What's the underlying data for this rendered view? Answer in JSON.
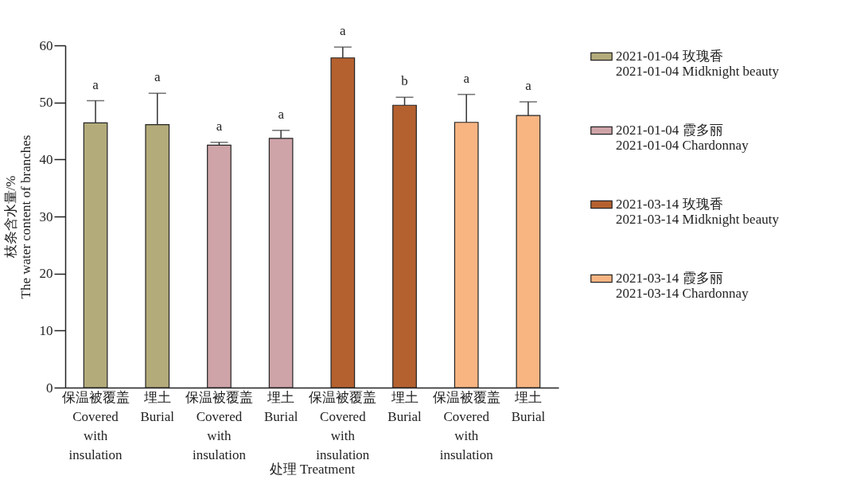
{
  "chart_data": {
    "type": "bar",
    "xlabel": "处理 Treatment",
    "ylabel": "枝条含水量/%\nThe water content of branches",
    "categories": [
      "保温被覆盖\nCovered\nwith\ninsulation",
      "埋土\nBurial",
      "保温被覆盖\nCovered\nwith\ninsulation",
      "埋土\nBurial",
      "保温被覆盖\nCovered\nwith\ninsulation",
      "埋土\nBurial",
      "保温被覆盖\nCovered\nwith\ninsulation",
      "埋土\nBurial"
    ],
    "series": [
      {
        "name": "2021-01-04 玫瑰香\n2021-01-04 Midknight beauty",
        "color": "#b3ab7a",
        "values": [
          46.4,
          46.1,
          null,
          null,
          null,
          null,
          null,
          null
        ],
        "errors": [
          [
            46.4,
            50.3
          ],
          [
            46.1,
            51.6
          ],
          null,
          null,
          null,
          null,
          null,
          null
        ]
      },
      {
        "name": "2021-01-04 霞多丽\n2021-01-04 Chardonnay",
        "color": "#cea4a8",
        "values": [
          null,
          null,
          42.5,
          43.7,
          null,
          null,
          null,
          null
        ],
        "errors": [
          null,
          null,
          [
            42.5,
            43.0
          ],
          [
            43.7,
            45.1
          ],
          null,
          null,
          null,
          null
        ]
      },
      {
        "name": "2021-03-14 玫瑰香\n2021-03-14 Midknight beauty",
        "color": "#b5612f",
        "values": [
          null,
          null,
          null,
          null,
          57.8,
          49.5,
          null,
          null
        ],
        "errors": [
          null,
          null,
          null,
          null,
          [
            57.8,
            59.7
          ],
          [
            49.5,
            50.9
          ],
          null,
          null
        ]
      },
      {
        "name": "2021-03-14 霞多丽\n2021-03-14 Chardonnay",
        "color": "#f8b582",
        "values": [
          null,
          null,
          null,
          null,
          null,
          null,
          46.5,
          47.7
        ],
        "errors": [
          null,
          null,
          null,
          null,
          null,
          null,
          [
            46.5,
            51.4
          ],
          [
            47.7,
            50.1
          ]
        ]
      }
    ],
    "annotations": [
      "a",
      "a",
      "a",
      "a",
      "a",
      "b",
      "a",
      "a"
    ],
    "ylim": [
      0,
      60
    ],
    "yticks": [
      0,
      10,
      20,
      30,
      40,
      50,
      60
    ],
    "grid": false,
    "legend": "right"
  }
}
